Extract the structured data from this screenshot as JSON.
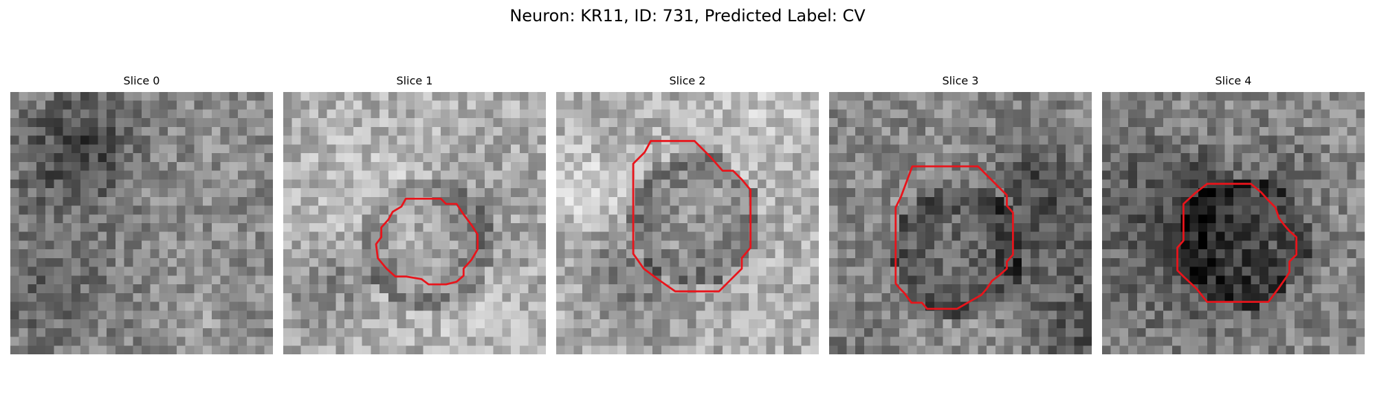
{
  "figure": {
    "title": "Neuron: KR11, ID: 731, Predicted Label: CV"
  },
  "panels": [
    {
      "title": "Slice 0",
      "seed": 11,
      "style": "noise",
      "contour": []
    },
    {
      "title": "Slice 1",
      "seed": 23,
      "style": "ring",
      "contour": [
        [
          14,
          12.2
        ],
        [
          18,
          12.2
        ],
        [
          18.6,
          12.8
        ],
        [
          19.8,
          12.8
        ],
        [
          20.6,
          14
        ],
        [
          21.5,
          15.2
        ],
        [
          22.2,
          16.3
        ],
        [
          22.2,
          18
        ],
        [
          21.5,
          19.2
        ],
        [
          20.6,
          20.2
        ],
        [
          20.6,
          21
        ],
        [
          19.8,
          21.7
        ],
        [
          18.6,
          22
        ],
        [
          16.6,
          22
        ],
        [
          15.8,
          21.4
        ],
        [
          14,
          21.1
        ],
        [
          12.8,
          21.1
        ],
        [
          11.8,
          20.2
        ],
        [
          10.8,
          19
        ],
        [
          10.6,
          17.4
        ],
        [
          11.2,
          16.6
        ],
        [
          11.2,
          15.5
        ],
        [
          12,
          14.6
        ],
        [
          12.5,
          13.7
        ],
        [
          13.5,
          13.1
        ]
      ]
    },
    {
      "title": "Slice 2",
      "seed": 37,
      "style": "ring",
      "contour": [
        [
          10.8,
          5.6
        ],
        [
          15.8,
          5.6
        ],
        [
          17.6,
          7.4
        ],
        [
          19,
          9
        ],
        [
          20.2,
          9
        ],
        [
          21.2,
          10
        ],
        [
          22.2,
          11.2
        ],
        [
          22.2,
          17.8
        ],
        [
          21.2,
          19
        ],
        [
          21.2,
          20.2
        ],
        [
          20.2,
          21.2
        ],
        [
          18.6,
          22.8
        ],
        [
          13.6,
          22.8
        ],
        [
          11.6,
          21.4
        ],
        [
          10,
          20.2
        ],
        [
          9.3,
          19.2
        ],
        [
          8.8,
          18.5
        ],
        [
          8.8,
          8.2
        ],
        [
          10.1,
          6.9
        ]
      ]
    },
    {
      "title": "Slice 3",
      "seed": 41,
      "style": "dark",
      "contour": [
        [
          9.5,
          8.5
        ],
        [
          17,
          8.5
        ],
        [
          18.5,
          10
        ],
        [
          20.3,
          11.8
        ],
        [
          20.3,
          13
        ],
        [
          21,
          13.8
        ],
        [
          21,
          18.6
        ],
        [
          20.3,
          19.4
        ],
        [
          20.3,
          20.2
        ],
        [
          19.4,
          21
        ],
        [
          18.6,
          21.6
        ],
        [
          18,
          22.5
        ],
        [
          17.4,
          23.2
        ],
        [
          14.6,
          24.8
        ],
        [
          11.2,
          24.8
        ],
        [
          10.6,
          24.1
        ],
        [
          9.4,
          24.1
        ],
        [
          8.6,
          23
        ],
        [
          8.1,
          22.5
        ],
        [
          7.6,
          21.9
        ],
        [
          7.6,
          13.2
        ],
        [
          8.2,
          12
        ]
      ]
    },
    {
      "title": "Slice 4",
      "seed": 53,
      "style": "dark",
      "contour": [
        [
          12,
          10.5
        ],
        [
          17,
          10.5
        ],
        [
          18.2,
          11.5
        ],
        [
          19,
          12.4
        ],
        [
          19.8,
          13.2
        ],
        [
          20.2,
          14.4
        ],
        [
          20.8,
          15.2
        ],
        [
          21.4,
          15.9
        ],
        [
          22.2,
          16.6
        ],
        [
          22.2,
          18.6
        ],
        [
          21.4,
          19.4
        ],
        [
          21.4,
          20.6
        ],
        [
          21.1,
          21.1
        ],
        [
          20.2,
          22.4
        ],
        [
          19,
          24
        ],
        [
          12,
          24
        ],
        [
          10.8,
          22.5
        ],
        [
          9.2,
          21
        ],
        [
          8.6,
          20.4
        ],
        [
          8.6,
          17.8
        ],
        [
          9.3,
          17
        ],
        [
          9.3,
          12.8
        ],
        [
          10.6,
          11.6
        ]
      ]
    }
  ]
}
